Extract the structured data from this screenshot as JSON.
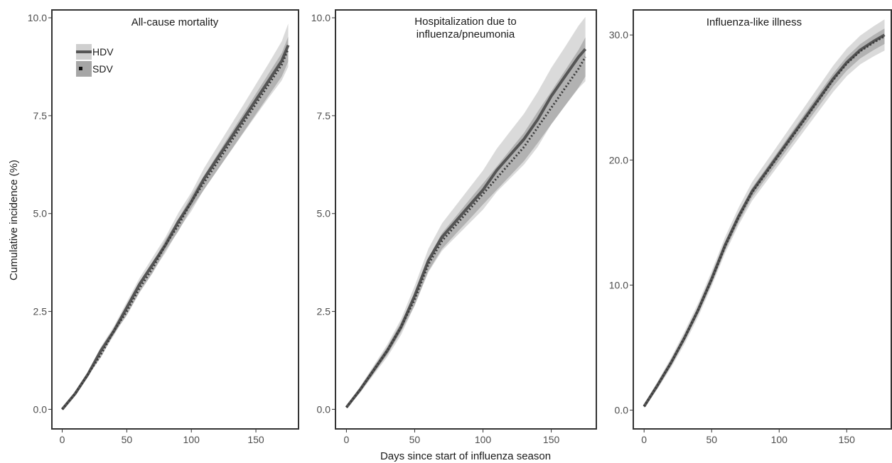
{
  "figure": {
    "xlabel": "Days since start of influenza season",
    "ylabel": "Cumulative incidence (%)"
  },
  "legend": {
    "placement": "top-left of first panel",
    "entries": [
      {
        "label": "HDV",
        "line_style": "solid",
        "band_color": "#cfcfcf"
      },
      {
        "label": "SDV",
        "line_style": "dotted",
        "band_color": "#a6a6a6"
      }
    ]
  },
  "colors": {
    "line": "#555555",
    "hdv_ci_band": "#d4d4d4",
    "sdv_ci_band": "#a8a8a8",
    "axis": "#333333",
    "tick_text": "#4d4d4d"
  },
  "chart_data": [
    {
      "type": "line",
      "title": "All-cause mortality",
      "xlabel": "Days since start of influenza season",
      "ylabel": "Cumulative incidence (%)",
      "xlim": [
        -8,
        183
      ],
      "ylim": [
        -0.5,
        10.2
      ],
      "xticks": [
        0,
        50,
        100,
        150
      ],
      "xtick_labels": [
        "0",
        "50",
        "100",
        "150"
      ],
      "yticks": [
        0,
        2.5,
        5,
        7.5,
        10
      ],
      "ytick_labels": [
        "0.0",
        "2.5",
        "5.0",
        "7.5",
        "10.0"
      ],
      "grid": false,
      "x": [
        0,
        10,
        20,
        30,
        40,
        50,
        60,
        70,
        80,
        90,
        100,
        110,
        120,
        130,
        140,
        150,
        160,
        170,
        175
      ],
      "series": [
        {
          "name": "HDV",
          "values": [
            0.0,
            0.4,
            0.9,
            1.5,
            2.0,
            2.6,
            3.2,
            3.7,
            4.2,
            4.8,
            5.3,
            5.9,
            6.4,
            6.9,
            7.4,
            7.9,
            8.4,
            8.9,
            9.3
          ],
          "ci_width": [
            0.02,
            0.04,
            0.07,
            0.1,
            0.12,
            0.14,
            0.16,
            0.18,
            0.2,
            0.22,
            0.24,
            0.27,
            0.3,
            0.33,
            0.36,
            0.4,
            0.44,
            0.5,
            0.55
          ]
        },
        {
          "name": "SDV",
          "values": [
            0.0,
            0.4,
            0.9,
            1.4,
            2.0,
            2.5,
            3.1,
            3.6,
            4.2,
            4.7,
            5.3,
            5.8,
            6.3,
            6.8,
            7.3,
            7.8,
            8.3,
            8.8,
            9.2
          ],
          "ci_width": [
            0.02,
            0.03,
            0.05,
            0.07,
            0.08,
            0.1,
            0.11,
            0.12,
            0.14,
            0.15,
            0.16,
            0.18,
            0.2,
            0.22,
            0.24,
            0.26,
            0.28,
            0.3,
            0.32
          ]
        }
      ]
    },
    {
      "type": "line",
      "title": "Hospitalization due to influenza/pneumonia",
      "title_lines": [
        "Hospitalization due to",
        "influenza/pneumonia"
      ],
      "xlabel": "Days since start of influenza season",
      "ylabel": "",
      "xlim": [
        -8,
        183
      ],
      "ylim": [
        -0.5,
        10.2
      ],
      "xticks": [
        0,
        50,
        100,
        150
      ],
      "xtick_labels": [
        "0",
        "50",
        "100",
        "150"
      ],
      "yticks": [
        0,
        2.5,
        5,
        7.5,
        10
      ],
      "ytick_labels": [
        "0.0",
        "2.5",
        "5.0",
        "7.5",
        "10.0"
      ],
      "grid": false,
      "x": [
        0,
        10,
        20,
        30,
        40,
        50,
        60,
        70,
        80,
        90,
        100,
        110,
        120,
        130,
        140,
        150,
        160,
        170,
        175
      ],
      "series": [
        {
          "name": "HDV",
          "values": [
            0.05,
            0.5,
            1.0,
            1.5,
            2.1,
            2.9,
            3.8,
            4.4,
            4.8,
            5.2,
            5.6,
            6.1,
            6.5,
            6.9,
            7.4,
            8.0,
            8.5,
            9.0,
            9.2
          ],
          "ci_width": [
            0.03,
            0.08,
            0.12,
            0.16,
            0.2,
            0.25,
            0.3,
            0.35,
            0.4,
            0.45,
            0.5,
            0.55,
            0.6,
            0.65,
            0.7,
            0.72,
            0.75,
            0.8,
            0.82
          ]
        },
        {
          "name": "SDV",
          "values": [
            0.05,
            0.5,
            1.0,
            1.5,
            2.1,
            2.8,
            3.7,
            4.3,
            4.7,
            5.1,
            5.5,
            5.9,
            6.3,
            6.7,
            7.2,
            7.7,
            8.2,
            8.7,
            9.0
          ],
          "ci_width": [
            0.02,
            0.05,
            0.08,
            0.1,
            0.12,
            0.15,
            0.17,
            0.2,
            0.22,
            0.25,
            0.27,
            0.3,
            0.33,
            0.36,
            0.4,
            0.42,
            0.45,
            0.48,
            0.5
          ]
        }
      ]
    },
    {
      "type": "line",
      "title": "Influenza-like illness",
      "xlabel": "Days since start of influenza season",
      "ylabel": "",
      "xlim": [
        -8,
        183
      ],
      "ylim": [
        -1.5,
        32
      ],
      "xticks": [
        0,
        50,
        100,
        150
      ],
      "xtick_labels": [
        "0",
        "50",
        "100",
        "150"
      ],
      "yticks": [
        0,
        10,
        20,
        30
      ],
      "ytick_labels": [
        "0.0",
        "10.0",
        "20.0",
        "30.0"
      ],
      "grid": false,
      "x": [
        0,
        10,
        20,
        30,
        40,
        50,
        60,
        70,
        80,
        90,
        100,
        110,
        120,
        130,
        140,
        150,
        160,
        170,
        178
      ],
      "series": [
        {
          "name": "HDV",
          "values": [
            0.3,
            2.0,
            3.8,
            5.8,
            8.0,
            10.5,
            13.2,
            15.5,
            17.5,
            19.0,
            20.5,
            22.0,
            23.5,
            25.0,
            26.5,
            27.8,
            28.8,
            29.5,
            30.0
          ],
          "ci_width": [
            0.15,
            0.3,
            0.4,
            0.5,
            0.55,
            0.6,
            0.65,
            0.7,
            0.75,
            0.8,
            0.85,
            0.9,
            0.95,
            1.0,
            1.05,
            1.1,
            1.15,
            1.2,
            1.25
          ]
        },
        {
          "name": "SDV",
          "values": [
            0.3,
            2.0,
            3.8,
            5.8,
            8.0,
            10.4,
            13.1,
            15.4,
            17.4,
            18.9,
            20.4,
            21.9,
            23.4,
            24.9,
            26.4,
            27.7,
            28.7,
            29.4,
            29.9
          ],
          "ci_width": [
            0.08,
            0.15,
            0.2,
            0.25,
            0.28,
            0.3,
            0.33,
            0.36,
            0.38,
            0.4,
            0.42,
            0.45,
            0.47,
            0.5,
            0.52,
            0.55,
            0.57,
            0.6,
            0.62
          ]
        }
      ]
    }
  ]
}
